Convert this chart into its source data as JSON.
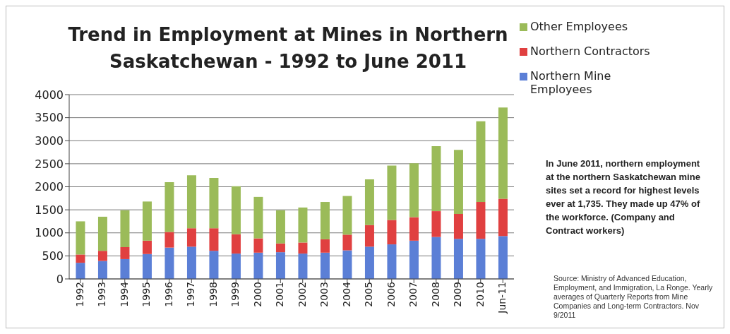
{
  "chart_data": {
    "type": "bar",
    "stacked": true,
    "title": "Trend in Employment at Mines in Northern Saskatchewan - 1992 to June 2011",
    "categories": [
      "1992",
      "1993",
      "1994",
      "1995",
      "1996",
      "1997",
      "1998",
      "1999",
      "2000",
      "2001",
      "2002",
      "2003",
      "2004",
      "2005",
      "2006",
      "2007",
      "2008",
      "2009",
      "2010",
      "Jun-11"
    ],
    "series": [
      {
        "name": "Northern Mine Employees",
        "color": "#5b7fd6",
        "values": [
          350,
          390,
          430,
          540,
          680,
          700,
          610,
          550,
          570,
          580,
          550,
          570,
          620,
          700,
          750,
          830,
          910,
          870,
          870,
          930
        ]
      },
      {
        "name": "Northern Contractors",
        "color": "#e04040",
        "values": [
          180,
          220,
          260,
          290,
          340,
          400,
          490,
          420,
          310,
          190,
          240,
          290,
          340,
          470,
          530,
          510,
          560,
          540,
          800,
          810
        ]
      },
      {
        "name": "Other Employees",
        "color": "#9bbb59",
        "values": [
          720,
          740,
          800,
          850,
          1080,
          1150,
          1090,
          1040,
          900,
          720,
          760,
          810,
          840,
          990,
          1180,
          1170,
          1410,
          1390,
          1750,
          1980
        ]
      }
    ],
    "ylim": [
      0,
      4000
    ],
    "yticks": [
      0,
      500,
      1000,
      1500,
      2000,
      2500,
      3000,
      3500,
      4000
    ],
    "grid": "y",
    "legend": "right",
    "annotations": [
      "In June 2011, northern employment at the northern Saskatchewan mine sites set a record for highest levels ever at 1,735. They made up 47% of the workforce. (Company and Contract workers)",
      "Source: Ministry of Advanced Education, Employment, and Immigration, La Ronge. Yearly averages of Quarterly Reports from Mine Companies and Long-term Contractors. Nov 9/2011"
    ]
  }
}
